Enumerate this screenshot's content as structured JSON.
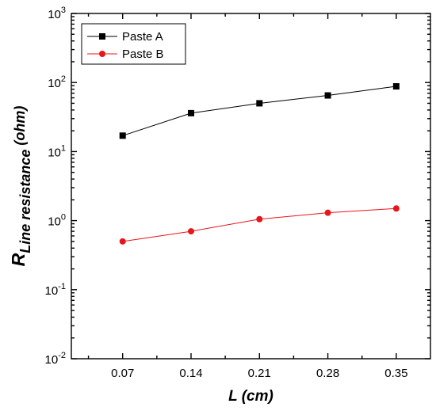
{
  "chart_data": {
    "type": "line",
    "yscale": "log",
    "x": [
      0.07,
      0.14,
      0.21,
      0.28,
      0.35
    ],
    "x_tick_labels": [
      "0.07",
      "0.14",
      "0.21",
      "0.28",
      "0.35"
    ],
    "xlim": [
      0.0175,
      0.385
    ],
    "ylim": [
      0.01,
      1000
    ],
    "y_ticks": [
      {
        "value": 0.01,
        "base": "10",
        "exp": "-2"
      },
      {
        "value": 0.1,
        "base": "10",
        "exp": "-1"
      },
      {
        "value": 1,
        "base": "10",
        "exp": "0"
      },
      {
        "value": 10,
        "base": "10",
        "exp": "1"
      },
      {
        "value": 100,
        "base": "10",
        "exp": "2"
      },
      {
        "value": 1000,
        "base": "10",
        "exp": "3"
      }
    ],
    "xlabel": "L (cm)",
    "ylabel": {
      "main": "R",
      "subscript": "Line resistance",
      "suffix": " (ohm)"
    },
    "legend_position": "top-left",
    "grid": false,
    "series": [
      {
        "name": "Paste A",
        "values": [
          17,
          36,
          50,
          65,
          88
        ],
        "color": "#000000",
        "marker": "square"
      },
      {
        "name": "Paste B",
        "values": [
          0.5,
          0.7,
          1.05,
          1.3,
          1.5
        ],
        "color": "#e8151b",
        "marker": "circle"
      }
    ]
  }
}
